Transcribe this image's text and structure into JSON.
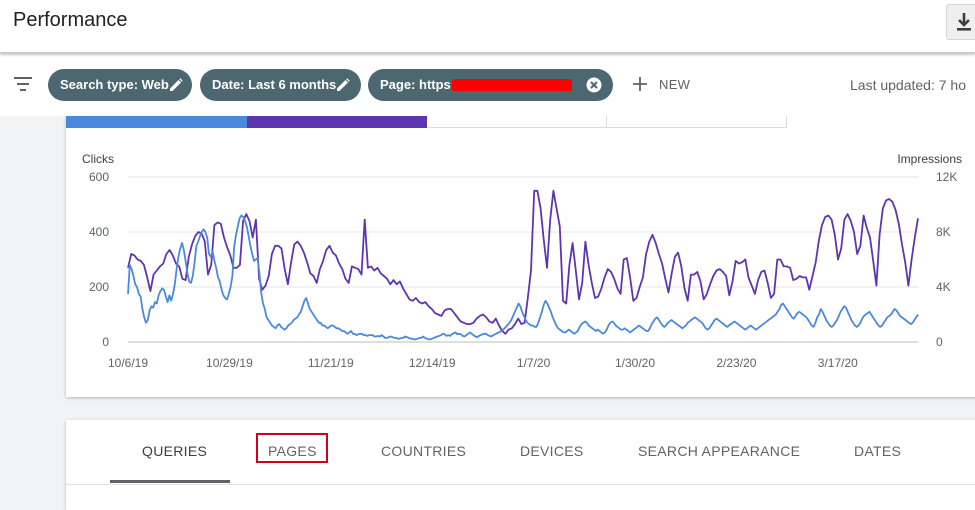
{
  "header": {
    "title": "Performance",
    "download_icon": "download-icon"
  },
  "filterbar": {
    "filter_icon": "filter-list-icon",
    "chips": [
      {
        "label": "Search type: Web",
        "icon": "edit-pencil-icon"
      },
      {
        "label": "Date: Last 6 months",
        "icon": "edit-pencil-icon"
      },
      {
        "label": "Page: https:/",
        "icon": "close-circle-icon"
      }
    ],
    "new_label": "NEW",
    "last_updated": "Last updated: 7 ho"
  },
  "colors": {
    "clicks": "#4a89dc",
    "impressions": "#5e35b1",
    "chip_bg": "#4d6770",
    "redaction": "#ff0000",
    "highlight_box": "#d0021b"
  },
  "chart_data": {
    "type": "line",
    "left_axis_label": "Clicks",
    "right_axis_label": "Impressions",
    "left_ticks": [
      "600",
      "400",
      "200",
      "0"
    ],
    "right_ticks": [
      "12K",
      "8K",
      "4K",
      "0"
    ],
    "left_ylim": [
      0,
      600
    ],
    "right_ylim": [
      0,
      12000
    ],
    "x_ticks": [
      "10/6/19",
      "10/29/19",
      "11/21/19",
      "12/14/19",
      "1/7/20",
      "1/30/20",
      "2/23/20",
      "3/17/20"
    ],
    "grid": true,
    "series": [
      {
        "name": "Impressions",
        "axis": "right",
        "values": [
          5400,
          6400,
          6300,
          6000,
          5900,
          5600,
          4700,
          3700,
          4900,
          5200,
          5500,
          5700,
          6400,
          6700,
          6300,
          5700,
          5500,
          4600,
          4500,
          6200,
          7100,
          7700,
          8000,
          7900,
          7300,
          4900,
          5600,
          8500,
          8700,
          8600,
          7600,
          6900,
          6300,
          5400,
          5400,
          5600,
          8800,
          9300,
          8800,
          7600,
          8900,
          4600,
          3800,
          4100,
          4800,
          6400,
          7000,
          7000,
          6800,
          5300,
          4200,
          5800,
          7100,
          7300,
          7000,
          6500,
          5800,
          5000,
          4800,
          4300,
          5300,
          5900,
          6700,
          7000,
          6500,
          6300,
          5700,
          5300,
          4600,
          4300,
          5500,
          5400,
          5300,
          4900,
          8900,
          5400,
          5500,
          5200,
          5400,
          5000,
          4800,
          4600,
          4200,
          4500,
          4200,
          4400,
          3900,
          3500,
          3100,
          3000,
          3200,
          2900,
          2800,
          2900,
          2600,
          2400,
          2100,
          2000,
          1900,
          2300,
          2400,
          2400,
          2100,
          1800,
          1500,
          1400,
          1300,
          1300,
          1400,
          1700,
          1900,
          2000,
          1800,
          1500,
          1400,
          1700,
          1200,
          800,
          600,
          900,
          1000,
          1300,
          1700,
          1300,
          1400,
          3200,
          5200,
          11000,
          11000,
          9700,
          7400,
          5400,
          8900,
          11000,
          9700,
          8400,
          3000,
          2800,
          5600,
          7200,
          5200,
          3100,
          4300,
          7300,
          5600,
          4300,
          3200,
          3300,
          3900,
          4700,
          5300,
          5100,
          4600,
          3900,
          3500,
          6000,
          6100,
          4700,
          3000,
          3200,
          4000,
          4700,
          6400,
          7300,
          7800,
          7200,
          6400,
          5700,
          4600,
          3600,
          5000,
          6200,
          6500,
          5500,
          3900,
          3000,
          4900,
          4900,
          5100,
          4400,
          3100,
          3500,
          4200,
          4800,
          5200,
          5300,
          5100,
          4800,
          3400,
          4400,
          5900,
          5700,
          5800,
          6000,
          4700,
          4100,
          3500,
          4500,
          5100,
          5200,
          4300,
          3200,
          3500,
          6000,
          6000,
          5500,
          5500,
          5400,
          4500,
          4600,
          4800,
          4700,
          4700,
          3800,
          4800,
          5800,
          7400,
          8500,
          9100,
          9200,
          8900,
          7800,
          6000,
          6800,
          8900,
          9300,
          8800,
          8000,
          6400,
          7000,
          9200,
          8300,
          7600,
          5900,
          4100,
          7800,
          9700,
          10300,
          10400,
          10200,
          9600,
          8600,
          7100,
          5800,
          4100,
          6000,
          7600,
          9000
        ],
        "color": "#5e35b1"
      },
      {
        "name": "Clicks",
        "axis": "left",
        "values": [
          175,
          280,
          265,
          240,
          210,
          200,
          175,
          165,
          120,
          90,
          70,
          80,
          115,
          130,
          125,
          145,
          140,
          170,
          185,
          195,
          190,
          165,
          145,
          170,
          150,
          175,
          210,
          265,
          310,
          340,
          360,
          335,
          295,
          250,
          220,
          215,
          240,
          290,
          350,
          365,
          385,
          400,
          410,
          400,
          380,
          320,
          310,
          330,
          295,
          270,
          235,
          220,
          190,
          170,
          160,
          155,
          175,
          200,
          240,
          345,
          390,
          420,
          450,
          460,
          455,
          440,
          420,
          385,
          350,
          320,
          295,
          300,
          305,
          250,
          180,
          140,
          120,
          90,
          80,
          70,
          60,
          55,
          50,
          60,
          65,
          55,
          50,
          45,
          50,
          60,
          65,
          70,
          80,
          85,
          90,
          100,
          110,
          130,
          150,
          160,
          140,
          120,
          110,
          100,
          90,
          80,
          70,
          70,
          60,
          60,
          55,
          50,
          55,
          60,
          60,
          55,
          50,
          50,
          45,
          40,
          40,
          35,
          30,
          35,
          40,
          30,
          30,
          25,
          28,
          30,
          30,
          25,
          25,
          22,
          25,
          25,
          25,
          20,
          20,
          22,
          20,
          25,
          20,
          15,
          15,
          18,
          20,
          18,
          15,
          15,
          12,
          12,
          15,
          15,
          20,
          18,
          15,
          12,
          12,
          10,
          10,
          12,
          15,
          15,
          20,
          15,
          12,
          10,
          10,
          12,
          15,
          18,
          20,
          22,
          25,
          30,
          28,
          22,
          25,
          22,
          28,
          32,
          35,
          28,
          30,
          28,
          22,
          20,
          25,
          30,
          35,
          30,
          25,
          20,
          18,
          22,
          25,
          28,
          30,
          30,
          25,
          22,
          20,
          25,
          28,
          32,
          35,
          38,
          42,
          48,
          55,
          62,
          70,
          80,
          95,
          110,
          125,
          140,
          130,
          110,
          95,
          80,
          70,
          65,
          60,
          60,
          55,
          55,
          70,
          90,
          110,
          135,
          150,
          140,
          125,
          110,
          90,
          75,
          60,
          50,
          45,
          40,
          35,
          35,
          40,
          45,
          40,
          35,
          30,
          35,
          40,
          55,
          65,
          70,
          75,
          70,
          60,
          55,
          50,
          45,
          40,
          45,
          40,
          35,
          30,
          35,
          45,
          60,
          70,
          75,
          70,
          60,
          55,
          50,
          45,
          45,
          50,
          45,
          40,
          35,
          40,
          45,
          50,
          55,
          60,
          55,
          50,
          45,
          40,
          40,
          50,
          65,
          75,
          85,
          90,
          80,
          70,
          60,
          55,
          60,
          70,
          75,
          80,
          75,
          70,
          65,
          60,
          55,
          50,
          55,
          60,
          70,
          75,
          80,
          85,
          90,
          85,
          80,
          75,
          70,
          60,
          50,
          45,
          50,
          60,
          70,
          80,
          85,
          80,
          75,
          70,
          65,
          60,
          55,
          60,
          65,
          70,
          75,
          70,
          65,
          60,
          55,
          50,
          45,
          50,
          55,
          60,
          55,
          50,
          45,
          50,
          55,
          60,
          65,
          70,
          75,
          80,
          85,
          90,
          95,
          100,
          110,
          120,
          135,
          140,
          130,
          120,
          110,
          100,
          90,
          85,
          95,
          105,
          110,
          105,
          100,
          95,
          90,
          80,
          70,
          60,
          55,
          70,
          90,
          100,
          120,
          110,
          95,
          80,
          70,
          60,
          55,
          60,
          70,
          80,
          95,
          110,
          120,
          130,
          125,
          110,
          95,
          80,
          70,
          60,
          55,
          60,
          70,
          85,
          95,
          100,
          105,
          110,
          100,
          90,
          80,
          70,
          60,
          55,
          60,
          70,
          80,
          90,
          95,
          100,
          110,
          120,
          115,
          105,
          95,
          90,
          85,
          80,
          75,
          70,
          65,
          70,
          80,
          90,
          100
        ],
        "color": "#4a89dc"
      }
    ]
  },
  "tabs": {
    "items": [
      "QUERIES",
      "PAGES",
      "COUNTRIES",
      "DEVICES",
      "SEARCH APPEARANCE",
      "DATES"
    ],
    "active": "QUERIES",
    "highlighted": "PAGES"
  }
}
